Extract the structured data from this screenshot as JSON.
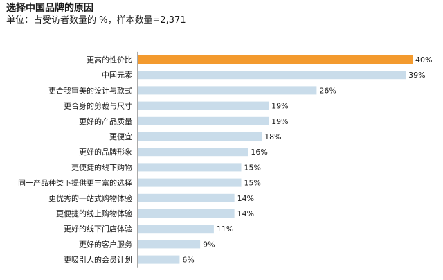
{
  "title": "选择中国品牌的原因",
  "subtitle": "单位：占受访者数量的 %，样本数量=2,371",
  "colors": {
    "highlight": "#f39a2e",
    "bar": "#c9dcea",
    "axis": "#555555"
  },
  "chart_data": {
    "type": "bar",
    "orientation": "horizontal",
    "categories": [
      "更高的性价比",
      "中国元素",
      "更合我审美的设计与款式",
      "更合身的剪裁与尺寸",
      "更好的产品质量",
      "更便宜",
      "更好的品牌形象",
      "更便捷的线下购物",
      "同一产品种类下提供更丰富的选择",
      "更优秀的一站式购物体验",
      "更便捷的线上购物体验",
      "更好的线下门店体验",
      "更好的客户服务",
      "更吸引人的会员计划"
    ],
    "values": [
      40,
      39,
      26,
      19,
      19,
      18,
      16,
      15,
      15,
      14,
      14,
      11,
      9,
      6
    ],
    "value_labels": [
      "40%",
      "39%",
      "26%",
      "19%",
      "19%",
      "18%",
      "16%",
      "15%",
      "15%",
      "14%",
      "14%",
      "11%",
      "9%",
      "6%"
    ],
    "highlight_index": 0,
    "xlim": [
      0,
      40
    ],
    "grid": false,
    "legend": "none"
  }
}
